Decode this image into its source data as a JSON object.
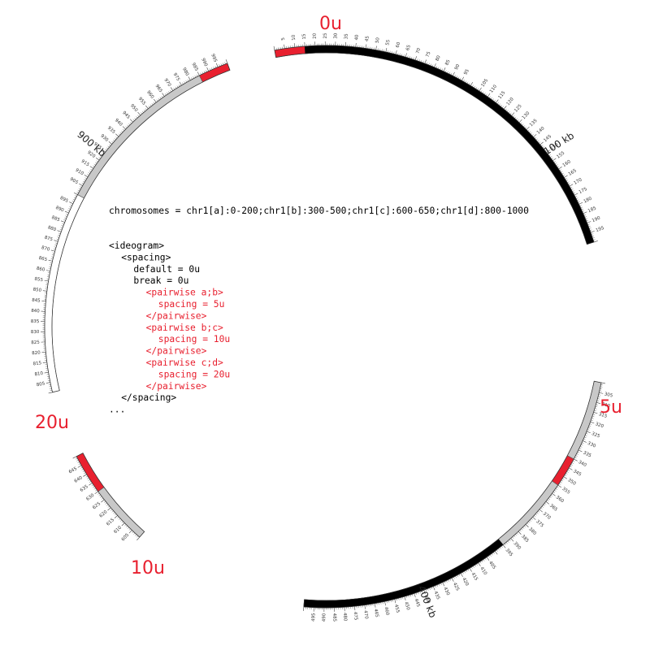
{
  "colors": {
    "red": "#e8202f",
    "black": "#000000",
    "grey": "#c8c8c8",
    "white": "#ffffff",
    "outline": "#555555",
    "tick": "#444444"
  },
  "config_text": {
    "chromosomes": "chromosomes = chr1[a]:0-200;chr1[b]:300-500;chr1[c]:600-650;chr1[d]:800-1000",
    "lines": [
      {
        "text": "<ideogram>",
        "indent": 0,
        "red": false
      },
      {
        "text": "<spacing>",
        "indent": 1,
        "red": false
      },
      {
        "text": "default = 0u",
        "indent": 2,
        "red": false
      },
      {
        "text": "break   = 0u",
        "indent": 2,
        "red": false
      },
      {
        "text": "<pairwise a;b>",
        "indent": 3,
        "red": true
      },
      {
        "text": "spacing = 5u",
        "indent": 4,
        "red": true
      },
      {
        "text": "</pairwise>",
        "indent": 3,
        "red": true
      },
      {
        "text": "<pairwise b;c>",
        "indent": 3,
        "red": true
      },
      {
        "text": "spacing = 10u",
        "indent": 4,
        "red": true
      },
      {
        "text": "</pairwise>",
        "indent": 3,
        "red": true
      },
      {
        "text": "<pairwise c;d>",
        "indent": 3,
        "red": true
      },
      {
        "text": "spacing = 20u",
        "indent": 4,
        "red": true
      },
      {
        "text": "</pairwise>",
        "indent": 3,
        "red": true
      },
      {
        "text": "</spacing>",
        "indent": 1,
        "red": false
      },
      {
        "text": "...",
        "indent": 0,
        "red": false
      }
    ]
  },
  "spacing_labels": [
    "0u",
    "5u",
    "10u",
    "20u"
  ],
  "kb_labels": [
    "100 kb",
    "400 kb",
    "900 kb"
  ],
  "ideogram": {
    "segments": [
      {
        "name": "a",
        "start": 0,
        "end": 200
      },
      {
        "name": "b",
        "start": 300,
        "end": 500
      },
      {
        "name": "c",
        "start": 600,
        "end": 650
      },
      {
        "name": "d",
        "start": 800,
        "end": 1000
      }
    ],
    "bands": [
      {
        "start": 0,
        "end": 15,
        "color": "red"
      },
      {
        "start": 15,
        "end": 200,
        "color": "black"
      },
      {
        "start": 300,
        "end": 340,
        "color": "grey"
      },
      {
        "start": 340,
        "end": 355,
        "color": "red"
      },
      {
        "start": 355,
        "end": 395,
        "color": "grey"
      },
      {
        "start": 395,
        "end": 500,
        "color": "black"
      },
      {
        "start": 600,
        "end": 630,
        "color": "grey"
      },
      {
        "start": 630,
        "end": 650,
        "color": "red"
      },
      {
        "start": 800,
        "end": 900,
        "color": "white"
      },
      {
        "start": 900,
        "end": 985,
        "color": "grey"
      },
      {
        "start": 985,
        "end": 1000,
        "color": "red"
      }
    ]
  }
}
